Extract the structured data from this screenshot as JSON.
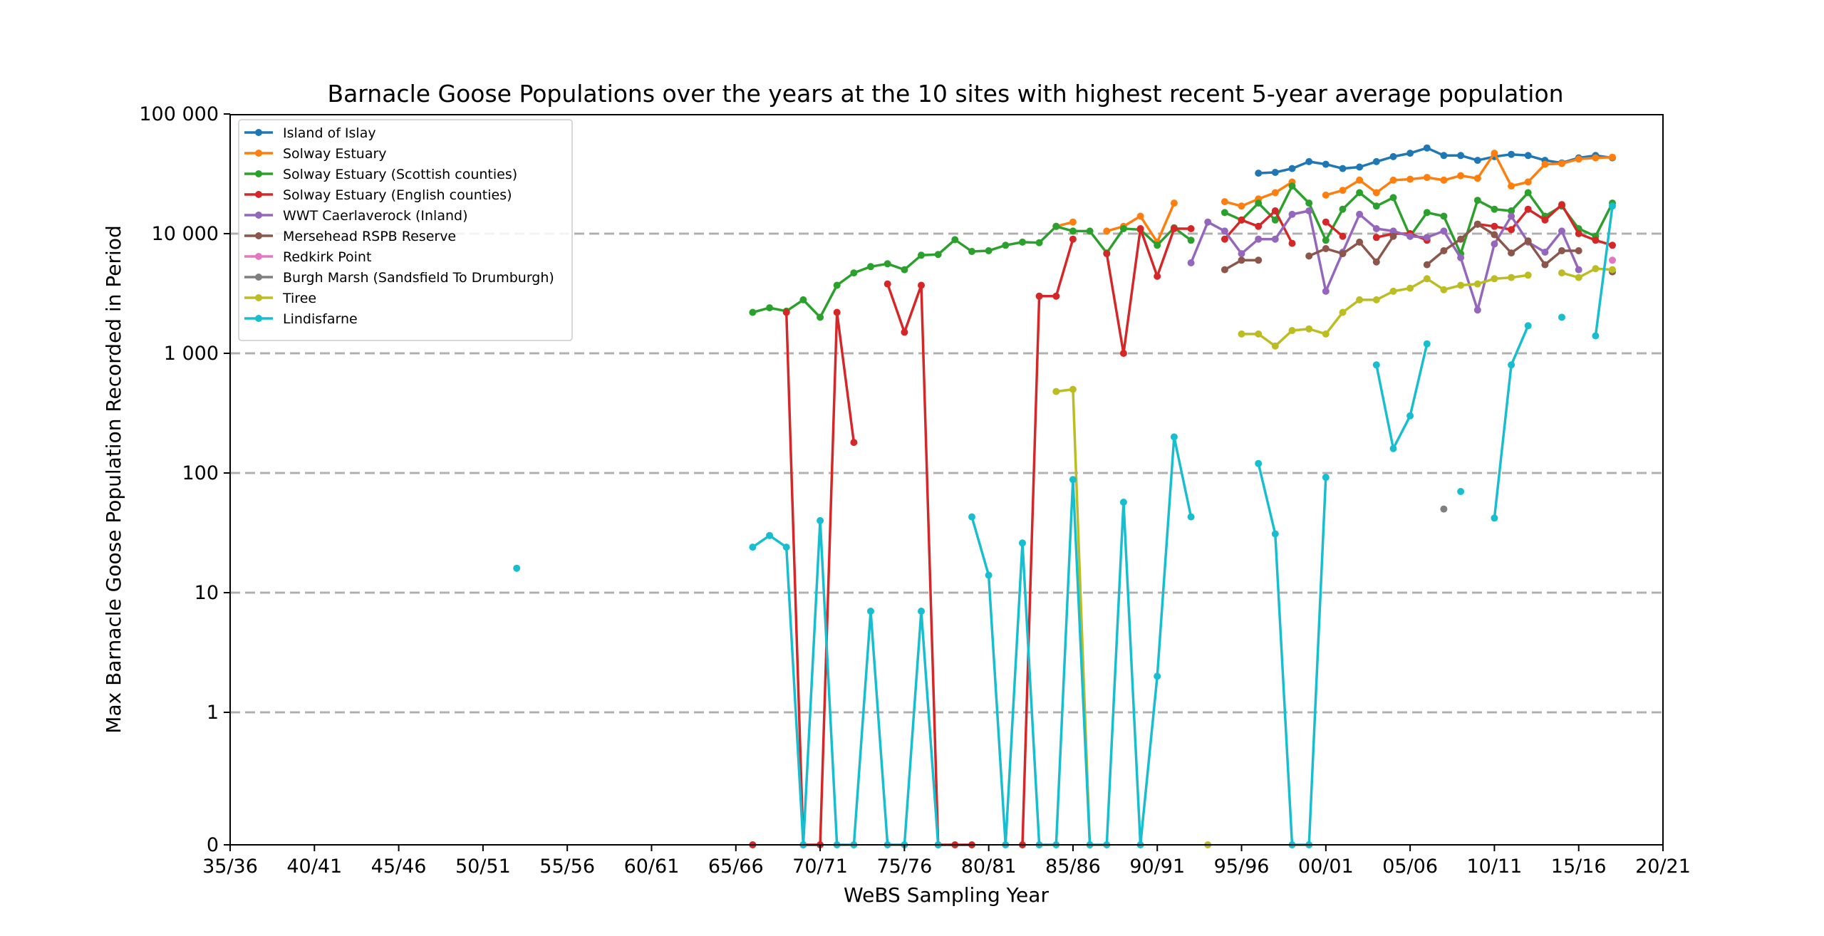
{
  "chart_data": {
    "type": "line",
    "title": "Barnacle Goose Populations over the years at the 10 sites with highest recent 5-year average population",
    "xlabel": "WeBS Sampling Year",
    "ylabel": "Max Barnacle Goose Population Recorded in Period",
    "y_scale": "symlog",
    "xlim": [
      1935,
      2020
    ],
    "ylim": [
      0,
      100000
    ],
    "x_ticks": [
      1935,
      1940,
      1945,
      1950,
      1955,
      1960,
      1965,
      1970,
      1975,
      1980,
      1985,
      1990,
      1995,
      2000,
      2005,
      2010,
      2015,
      2020
    ],
    "x_tick_labels": [
      "35/36",
      "40/41",
      "45/46",
      "50/51",
      "55/56",
      "60/61",
      "65/66",
      "70/71",
      "75/76",
      "80/81",
      "85/86",
      "90/91",
      "95/96",
      "00/01",
      "05/06",
      "10/11",
      "15/16",
      "20/21"
    ],
    "y_ticks": [
      0,
      1,
      10,
      100,
      1000,
      10000,
      100000
    ],
    "y_tick_labels": [
      "0",
      "1",
      "10",
      "100",
      "1 000",
      "10 000",
      "100 000"
    ],
    "grid": "horizontal dashed",
    "legend_position": "top-left",
    "series": [
      {
        "name": "Island of Islay",
        "color": "#1f77b4",
        "points": [
          [
            1996,
            32000
          ],
          [
            1997,
            32500
          ],
          [
            1998,
            35000
          ],
          [
            1999,
            40000
          ],
          [
            2000,
            38000
          ],
          [
            2001,
            35000
          ],
          [
            2002,
            36000
          ],
          [
            2003,
            40000
          ],
          [
            2004,
            44000
          ],
          [
            2005,
            47000
          ],
          [
            2006,
            52000
          ],
          [
            2007,
            45000
          ],
          [
            2008,
            45000
          ],
          [
            2009,
            41000
          ],
          [
            2010,
            44000
          ],
          [
            2011,
            46000
          ],
          [
            2012,
            45000
          ],
          [
            2013,
            41000
          ],
          [
            2014,
            39000
          ],
          [
            2015,
            43000
          ],
          [
            2016,
            45000
          ],
          [
            2017,
            43000
          ]
        ]
      },
      {
        "name": "Solway Estuary",
        "color": "#ff7f0e",
        "points": [
          [
            1984,
            11500
          ],
          [
            1985,
            12500
          ],
          null,
          [
            1987,
            10500
          ],
          [
            1988,
            11500
          ],
          [
            1989,
            14000
          ],
          [
            1990,
            8500
          ],
          [
            1991,
            18000
          ],
          null,
          [
            1994,
            18500
          ],
          [
            1995,
            17000
          ],
          [
            1996,
            19500
          ],
          [
            1997,
            22000
          ],
          [
            1998,
            27000
          ],
          null,
          [
            2000,
            21000
          ],
          [
            2001,
            23000
          ],
          [
            2002,
            28000
          ],
          [
            2003,
            22000
          ],
          [
            2004,
            28000
          ],
          [
            2005,
            28500
          ],
          [
            2006,
            29500
          ],
          [
            2007,
            28000
          ],
          [
            2008,
            30500
          ],
          [
            2009,
            29000
          ],
          [
            2010,
            47000
          ],
          [
            2011,
            25000
          ],
          [
            2012,
            27000
          ],
          [
            2013,
            38000
          ],
          [
            2014,
            38500
          ],
          [
            2015,
            42000
          ],
          [
            2016,
            43000
          ],
          [
            2017,
            43500
          ]
        ]
      },
      {
        "name": "Solway Estuary (Scottish counties)",
        "color": "#2ca02c",
        "points": [
          [
            1966,
            2200
          ],
          [
            1967,
            2400
          ],
          [
            1968,
            2250
          ],
          [
            1969,
            2800
          ],
          [
            1970,
            2000
          ],
          [
            1971,
            3700
          ],
          [
            1972,
            4700
          ],
          [
            1973,
            5300
          ],
          [
            1974,
            5600
          ],
          [
            1975,
            5000
          ],
          [
            1976,
            6600
          ],
          [
            1977,
            6700
          ],
          [
            1978,
            8900
          ],
          [
            1979,
            7100
          ],
          [
            1980,
            7200
          ],
          [
            1981,
            8000
          ],
          [
            1982,
            8500
          ],
          [
            1983,
            8400
          ],
          [
            1984,
            11500
          ],
          [
            1985,
            10500
          ],
          [
            1986,
            10500
          ],
          [
            1987,
            6900
          ],
          [
            1988,
            11000
          ],
          [
            1989,
            10800
          ],
          [
            1990,
            8000
          ],
          [
            1991,
            11200
          ],
          [
            1992,
            8800
          ],
          null,
          [
            1994,
            15000
          ],
          [
            1995,
            13000
          ],
          [
            1996,
            18000
          ],
          [
            1997,
            13000
          ],
          [
            1998,
            25000
          ],
          [
            1999,
            18000
          ],
          [
            2000,
            8800
          ],
          [
            2001,
            16000
          ],
          [
            2002,
            22000
          ],
          [
            2003,
            17000
          ],
          [
            2004,
            20000
          ],
          [
            2005,
            9500
          ],
          [
            2006,
            15000
          ],
          [
            2007,
            14000
          ],
          [
            2008,
            6800
          ],
          [
            2009,
            19000
          ],
          [
            2010,
            16000
          ],
          [
            2011,
            15500
          ],
          [
            2012,
            22000
          ],
          [
            2013,
            14000
          ],
          [
            2014,
            17000
          ],
          [
            2015,
            11000
          ],
          [
            2016,
            9500
          ],
          [
            2017,
            18000
          ]
        ]
      },
      {
        "name": "Solway Estuary (English counties)",
        "color": "#d62728",
        "points": [
          [
            1966,
            0
          ],
          null,
          [
            1968,
            2200
          ],
          [
            1969,
            0
          ],
          [
            1970,
            0
          ],
          [
            1971,
            2200
          ],
          [
            1972,
            180
          ],
          null,
          [
            1974,
            3800
          ],
          [
            1975,
            1500
          ],
          [
            1976,
            3700
          ],
          [
            1977,
            0
          ],
          [
            1978,
            0
          ],
          [
            1979,
            0
          ],
          null,
          [
            1982,
            0
          ],
          [
            1983,
            3000
          ],
          [
            1984,
            3000
          ],
          [
            1985,
            9000
          ],
          null,
          [
            1987,
            6800
          ],
          [
            1988,
            1000
          ],
          [
            1989,
            11000
          ],
          [
            1990,
            4400
          ],
          [
            1991,
            11000
          ],
          [
            1992,
            11000
          ],
          null,
          [
            1994,
            9000
          ],
          [
            1995,
            13000
          ],
          [
            1996,
            11500
          ],
          [
            1997,
            15500
          ],
          [
            1998,
            8300
          ],
          null,
          [
            2000,
            12500
          ],
          [
            2001,
            9500
          ],
          null,
          [
            2003,
            9300
          ],
          [
            2004,
            10000
          ],
          [
            2005,
            10000
          ],
          [
            2006,
            8800
          ],
          null,
          [
            2009,
            12000
          ],
          [
            2010,
            11500
          ],
          [
            2011,
            10800
          ],
          [
            2012,
            16000
          ],
          [
            2013,
            13000
          ],
          [
            2014,
            17500
          ],
          [
            2015,
            10000
          ],
          [
            2016,
            8800
          ],
          [
            2017,
            8000
          ]
        ]
      },
      {
        "name": "WWT Caerlaverock (Inland)",
        "color": "#9467bd",
        "points": [
          [
            1992,
            5700
          ],
          [
            1993,
            12500
          ],
          [
            1994,
            10500
          ],
          [
            1995,
            6800
          ],
          [
            1996,
            9000
          ],
          [
            1997,
            9000
          ],
          [
            1998,
            14500
          ],
          [
            1999,
            15500
          ],
          [
            2000,
            3300
          ],
          [
            2001,
            7000
          ],
          [
            2002,
            14500
          ],
          [
            2003,
            11000
          ],
          [
            2004,
            10500
          ],
          [
            2005,
            9500
          ],
          [
            2006,
            9300
          ],
          [
            2007,
            10500
          ],
          [
            2008,
            6300
          ],
          [
            2009,
            2300
          ],
          [
            2010,
            8200
          ],
          [
            2011,
            14000
          ],
          [
            2012,
            8500
          ],
          [
            2013,
            7000
          ],
          [
            2014,
            10500
          ],
          [
            2015,
            5000
          ]
        ]
      },
      {
        "name": "Mersehead RSPB Reserve",
        "color": "#8c564b",
        "points": [
          [
            1994,
            5000
          ],
          [
            1995,
            6000
          ],
          [
            1996,
            6000
          ],
          null,
          [
            1999,
            6500
          ],
          [
            2000,
            7500
          ],
          [
            2001,
            6800
          ],
          [
            2002,
            8500
          ],
          [
            2003,
            5800
          ],
          [
            2004,
            9500
          ],
          null,
          [
            2006,
            5500
          ],
          [
            2007,
            7200
          ],
          [
            2008,
            9000
          ],
          [
            2009,
            12000
          ],
          [
            2010,
            9800
          ],
          [
            2011,
            6900
          ],
          [
            2012,
            8700
          ],
          [
            2013,
            5500
          ],
          [
            2014,
            7200
          ],
          [
            2015,
            7200
          ],
          null,
          [
            2017,
            4800
          ]
        ]
      },
      {
        "name": "Redkirk Point",
        "color": "#e377c2",
        "points": [
          [
            2017,
            6000
          ]
        ]
      },
      {
        "name": "Burgh Marsh (Sandsfield To Drumburgh)",
        "color": "#7f7f7f",
        "points": [
          [
            2007,
            50
          ]
        ]
      },
      {
        "name": "Tiree",
        "color": "#bcbd22",
        "points": [
          [
            1984,
            480
          ],
          [
            1985,
            500
          ],
          [
            1986,
            0
          ],
          null,
          [
            1993,
            0
          ],
          null,
          [
            1995,
            1450
          ],
          [
            1996,
            1450
          ],
          [
            1997,
            1150
          ],
          [
            1998,
            1550
          ],
          [
            1999,
            1600
          ],
          [
            2000,
            1450
          ],
          [
            2001,
            2200
          ],
          [
            2002,
            2800
          ],
          [
            2003,
            2800
          ],
          [
            2004,
            3300
          ],
          [
            2005,
            3500
          ],
          [
            2006,
            4200
          ],
          [
            2007,
            3400
          ],
          [
            2008,
            3700
          ],
          [
            2009,
            3800
          ],
          [
            2010,
            4200
          ],
          [
            2011,
            4300
          ],
          [
            2012,
            4500
          ],
          null,
          [
            2014,
            4700
          ],
          [
            2015,
            4300
          ],
          [
            2016,
            5100
          ],
          [
            2017,
            5000
          ]
        ]
      },
      {
        "name": "Lindisfarne",
        "color": "#17becf",
        "points": [
          [
            1952,
            16
          ],
          null,
          [
            1966,
            24
          ],
          [
            1967,
            30
          ],
          [
            1968,
            24
          ],
          [
            1969,
            0
          ],
          [
            1970,
            40
          ],
          [
            1971,
            0
          ],
          [
            1972,
            0
          ],
          [
            1973,
            7
          ],
          [
            1974,
            0
          ],
          [
            1975,
            0
          ],
          [
            1976,
            7
          ],
          [
            1977,
            0
          ],
          null,
          [
            1979,
            43
          ],
          [
            1980,
            14
          ],
          [
            1981,
            0
          ],
          [
            1982,
            26
          ],
          [
            1983,
            0
          ],
          [
            1984,
            0
          ],
          [
            1985,
            88
          ],
          [
            1986,
            0
          ],
          [
            1987,
            0
          ],
          [
            1988,
            57
          ],
          [
            1989,
            0
          ],
          [
            1990,
            2
          ],
          [
            1991,
            200
          ],
          [
            1992,
            43
          ],
          null,
          [
            1996,
            120
          ],
          [
            1997,
            31
          ],
          [
            1998,
            0
          ],
          [
            1999,
            0
          ],
          [
            2000,
            92
          ],
          null,
          [
            2003,
            800
          ],
          [
            2004,
            160
          ],
          [
            2005,
            300
          ],
          [
            2006,
            1200
          ],
          null,
          [
            2008,
            70
          ],
          null,
          [
            2010,
            42
          ],
          [
            2011,
            800
          ],
          [
            2012,
            1700
          ],
          null,
          [
            2014,
            2000
          ],
          null,
          [
            2016,
            1400
          ],
          [
            2017,
            17000
          ]
        ]
      }
    ]
  }
}
